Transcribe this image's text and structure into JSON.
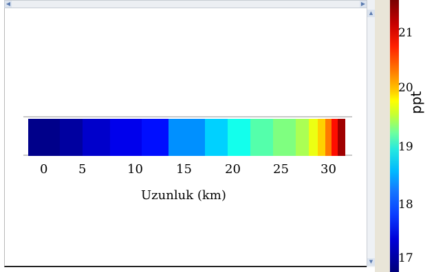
{
  "chart_data": {
    "type": "heatmap",
    "xlabel": "Uzunluk (km)",
    "xticks": [
      "0",
      "5",
      "10",
      "15",
      "20",
      "25",
      "30"
    ],
    "xlim": [
      -3,
      32
    ],
    "colorbar": {
      "label": "ppt",
      "ticks": [
        "17",
        "18",
        "19",
        "20",
        "21"
      ],
      "range": [
        16.85,
        21.55
      ]
    },
    "segments": [
      {
        "x0": -3,
        "x1": 0.5,
        "value": 16.9
      },
      {
        "x0": 0.5,
        "x1": 3.0,
        "value": 17.0
      },
      {
        "x0": 3.0,
        "x1": 6.0,
        "value": 17.2
      },
      {
        "x0": 6.0,
        "x1": 9.5,
        "value": 17.35
      },
      {
        "x0": 9.5,
        "x1": 12.5,
        "value": 17.5
      },
      {
        "x0": 12.5,
        "x1": 16.5,
        "value": 18.1
      },
      {
        "x0": 16.5,
        "x1": 19.0,
        "value": 18.4
      },
      {
        "x0": 19.0,
        "x1": 21.5,
        "value": 18.7
      },
      {
        "x0": 21.5,
        "x1": 24.0,
        "value": 19.0
      },
      {
        "x0": 24.0,
        "x1": 26.5,
        "value": 19.2
      },
      {
        "x0": 26.5,
        "x1": 28.0,
        "value": 19.4
      },
      {
        "x0": 28.0,
        "x1": 29.0,
        "value": 19.7
      },
      {
        "x0": 29.0,
        "x1": 29.8,
        "value": 20.0
      },
      {
        "x0": 29.8,
        "x1": 30.5,
        "value": 20.4
      },
      {
        "x0": 30.5,
        "x1": 31.2,
        "value": 20.9
      },
      {
        "x0": 31.2,
        "x1": 32.0,
        "value": 21.4
      }
    ]
  }
}
